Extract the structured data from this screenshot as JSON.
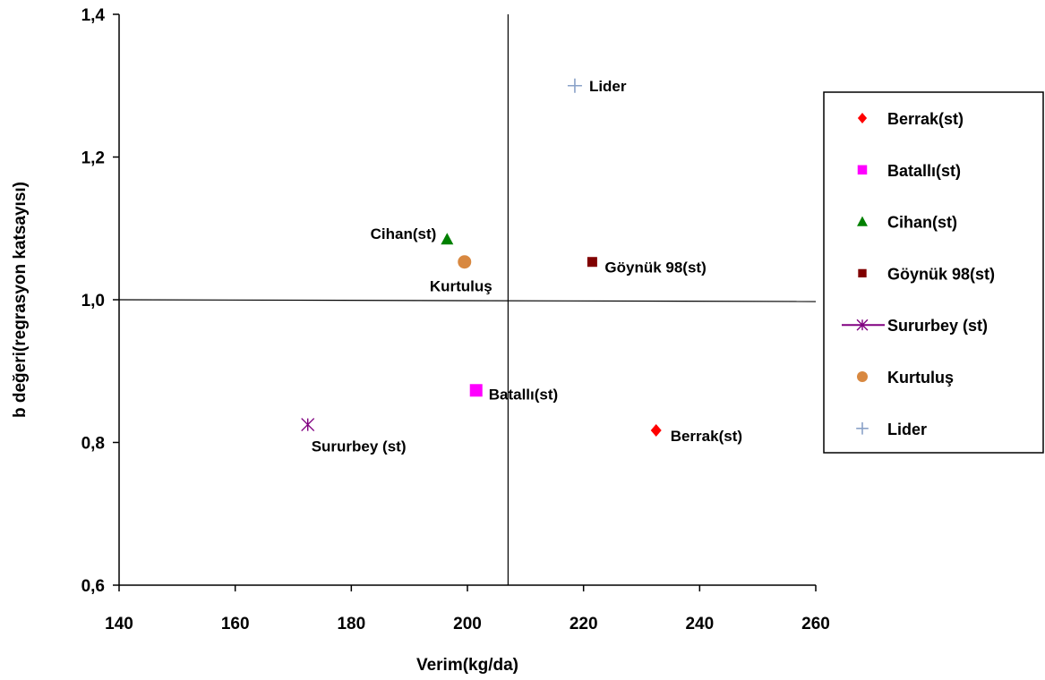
{
  "chart_data": {
    "type": "scatter",
    "title": "",
    "xlabel": "Verim(kg/da)",
    "ylabel": "b değeri(regrasyon katsayısı)",
    "xlim": [
      140,
      260
    ],
    "ylim": [
      0.6,
      1.4
    ],
    "x_ticks": [
      "140",
      "160",
      "180",
      "200",
      "220",
      "240",
      "260"
    ],
    "y_ticks": [
      "0,6",
      "0,8",
      "1,0",
      "1,2",
      "1,4"
    ],
    "reference_lines": {
      "x": 207,
      "y": 1.0
    },
    "grid": false,
    "legend_position": "right",
    "series": [
      {
        "name": "Berrak(st)",
        "label": "Berrak(st)",
        "x": 232.5,
        "y": 0.817,
        "marker": "diamond",
        "color": "#ff0000"
      },
      {
        "name": "Batallı(st)",
        "label": "Batallı(st)",
        "x": 201.5,
        "y": 0.873,
        "marker": "square",
        "color": "#ff00ff"
      },
      {
        "name": "Cihan(st)",
        "label": "Cihan(st)",
        "x": 196.5,
        "y": 1.085,
        "marker": "triangle",
        "color": "#008000"
      },
      {
        "name": "Göynük 98(st)",
        "label": "Göynük 98(st)",
        "x": 221.5,
        "y": 1.053,
        "marker": "square-small",
        "color": "#800000"
      },
      {
        "name": "Sururbey (st)",
        "label": "Sururbey (st)",
        "x": 172.5,
        "y": 0.825,
        "marker": "asterisk",
        "color": "#800080"
      },
      {
        "name": "Kurtuluş",
        "label": "Kurtuluş",
        "x": 199.5,
        "y": 1.053,
        "marker": "circle",
        "color": "#d88840"
      },
      {
        "name": "Lider",
        "label": "Lider",
        "x": 218.5,
        "y": 1.3,
        "marker": "plus",
        "color": "#8aa2c8"
      }
    ]
  }
}
